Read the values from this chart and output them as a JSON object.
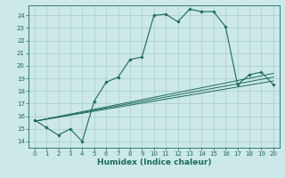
{
  "title": "",
  "xlabel": "Humidex (Indice chaleur)",
  "bg_color": "#cce8e8",
  "grid_color": "#aacccc",
  "line_color": "#1a6b5a",
  "xlim": [
    -0.5,
    20.5
  ],
  "ylim": [
    13.5,
    24.8
  ],
  "xticks": [
    0,
    1,
    2,
    3,
    4,
    5,
    6,
    7,
    8,
    9,
    10,
    11,
    12,
    13,
    14,
    15,
    16,
    17,
    18,
    19,
    20
  ],
  "yticks": [
    14,
    15,
    16,
    17,
    18,
    19,
    20,
    21,
    22,
    23,
    24
  ],
  "main_line_x": [
    0,
    1,
    2,
    3,
    4,
    5,
    6,
    7,
    8,
    9,
    10,
    11,
    12,
    13,
    14,
    15,
    16,
    17,
    18,
    19,
    20
  ],
  "main_line_y": [
    15.7,
    15.1,
    14.5,
    15.0,
    14.0,
    17.2,
    18.7,
    19.1,
    20.5,
    20.7,
    24.0,
    24.1,
    23.5,
    24.5,
    24.3,
    24.3,
    23.1,
    18.5,
    19.3,
    19.5,
    18.5
  ],
  "diag_lines": [
    {
      "x": [
        0,
        20
      ],
      "y": [
        15.6,
        19.4
      ]
    },
    {
      "x": [
        0,
        20
      ],
      "y": [
        15.6,
        18.8
      ]
    },
    {
      "x": [
        0,
        20
      ],
      "y": [
        15.6,
        19.1
      ]
    }
  ],
  "xlabel_fontsize": 6.5,
  "tick_fontsize": 5.0
}
